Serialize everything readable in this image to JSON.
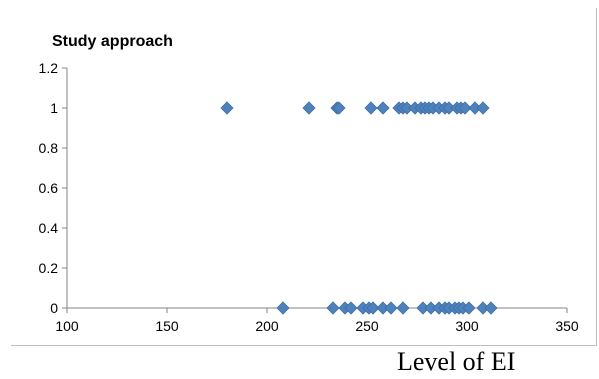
{
  "chart_data": {
    "type": "scatter",
    "title": "Study approach",
    "xlabel": "Level of EI",
    "ylabel": "",
    "xlim": [
      100,
      350
    ],
    "ylim": [
      0,
      1.2
    ],
    "x_ticks": [
      100,
      150,
      200,
      250,
      300,
      350
    ],
    "y_ticks": [
      0,
      0.2,
      0.4,
      0.6,
      0.8,
      1,
      1.2
    ],
    "y_tick_labels": [
      "0",
      "0.2",
      "0.4",
      "0.6",
      "0.8",
      "1",
      "1.2"
    ],
    "grid": false,
    "legend": "none",
    "marker": "diamond",
    "colors": {
      "marker": "#4f81bd",
      "marker_stroke": "#3a6ea5",
      "axis": "#868686"
    },
    "series": [
      {
        "points": [
          [
            180,
            1
          ],
          [
            221,
            1
          ],
          [
            235,
            1
          ],
          [
            236,
            1
          ],
          [
            252,
            1
          ],
          [
            258,
            1
          ],
          [
            266,
            1
          ],
          [
            268,
            1
          ],
          [
            270,
            1
          ],
          [
            274,
            1
          ],
          [
            277,
            1
          ],
          [
            279,
            1
          ],
          [
            281,
            1
          ],
          [
            283,
            1
          ],
          [
            286,
            1
          ],
          [
            289,
            1
          ],
          [
            291,
            1
          ],
          [
            295,
            1
          ],
          [
            297,
            1
          ],
          [
            299,
            1
          ],
          [
            304,
            1
          ],
          [
            308,
            1
          ],
          [
            208,
            0
          ],
          [
            233,
            0
          ],
          [
            239,
            0
          ],
          [
            242,
            0
          ],
          [
            248,
            0
          ],
          [
            251,
            0
          ],
          [
            253,
            0
          ],
          [
            258,
            0
          ],
          [
            262,
            0
          ],
          [
            268,
            0
          ],
          [
            278,
            0
          ],
          [
            282,
            0
          ],
          [
            286,
            0
          ],
          [
            289,
            0
          ],
          [
            291,
            0
          ],
          [
            294,
            0
          ],
          [
            296,
            0
          ],
          [
            298,
            0
          ],
          [
            301,
            0
          ],
          [
            308,
            0
          ],
          [
            312,
            0
          ]
        ]
      }
    ]
  }
}
